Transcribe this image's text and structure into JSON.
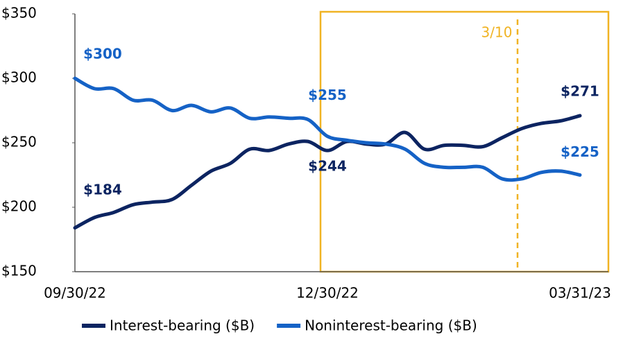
{
  "chart_data": {
    "type": "line",
    "categories": [
      "09/30/22",
      null,
      null,
      null,
      null,
      null,
      null,
      null,
      null,
      null,
      null,
      null,
      null,
      "12/30/22",
      null,
      null,
      null,
      null,
      null,
      null,
      null,
      null,
      null,
      null,
      null,
      null,
      "03/31/23"
    ],
    "series": [
      {
        "name": "Interest-bearing ($B)",
        "color": "#0c2461",
        "values": [
          184,
          192,
          196,
          202,
          204,
          206,
          217,
          228,
          234,
          245,
          244,
          249,
          251,
          244,
          251,
          249,
          249,
          258,
          245,
          248,
          248,
          247,
          254,
          261,
          265,
          267,
          271
        ],
        "value_labels": [
          "$184",
          null,
          null,
          null,
          null,
          null,
          null,
          null,
          null,
          null,
          null,
          null,
          null,
          "$244",
          null,
          null,
          null,
          null,
          null,
          null,
          null,
          null,
          null,
          null,
          null,
          null,
          "$271"
        ]
      },
      {
        "name": "Noninterest-bearing ($B)",
        "color": "#1562c6",
        "values": [
          300,
          292,
          292,
          283,
          283,
          275,
          279,
          274,
          277,
          269,
          270,
          269,
          268,
          255,
          252,
          250,
          249,
          245,
          234,
          231,
          231,
          231,
          222,
          222,
          227,
          228,
          225
        ],
        "value_labels": [
          "$300",
          null,
          null,
          null,
          null,
          null,
          null,
          null,
          null,
          null,
          null,
          null,
          null,
          "$255",
          null,
          null,
          null,
          null,
          null,
          null,
          null,
          null,
          null,
          null,
          null,
          null,
          "$225"
        ]
      }
    ],
    "ylim": [
      150,
      350
    ],
    "yticks": [
      {
        "value": 150,
        "label": "$150"
      },
      {
        "value": 200,
        "label": "$200"
      },
      {
        "value": 250,
        "label": "$250"
      },
      {
        "value": 300,
        "label": "$300"
      },
      {
        "value": 350,
        "label": "$350"
      }
    ],
    "annotation": "3/10",
    "grid": false
  }
}
